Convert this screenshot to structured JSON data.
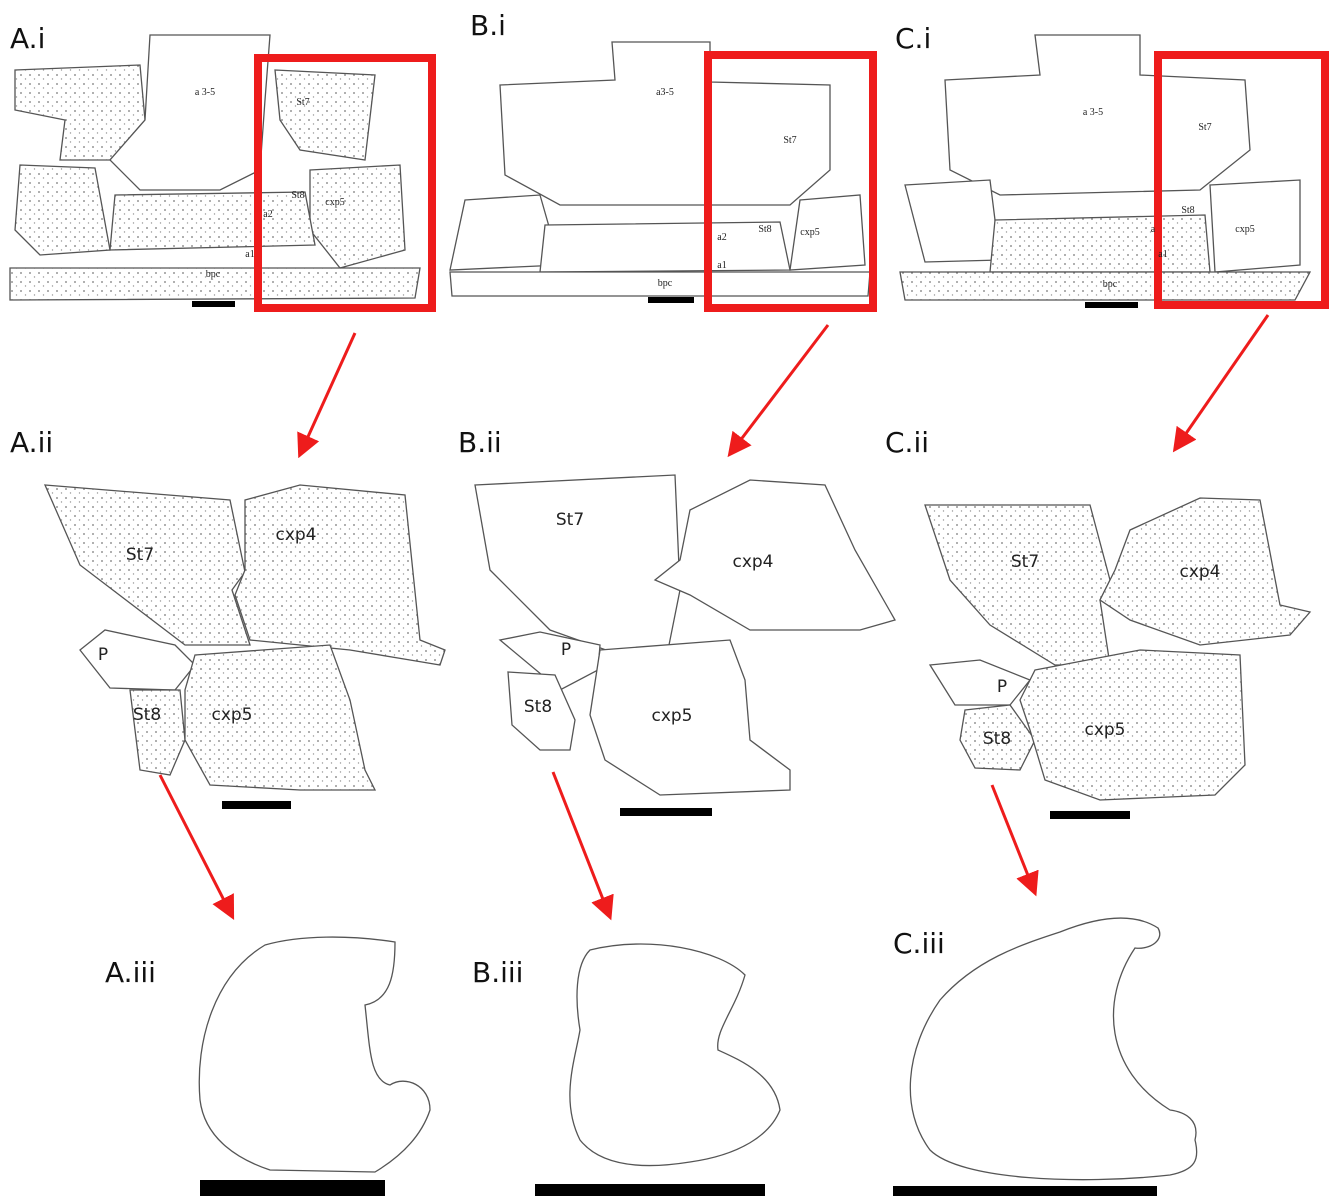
{
  "panels": [
    {
      "label": "A.i",
      "parts": [
        "a 3-5",
        "St7",
        "St8",
        "cxp5",
        "a2",
        "a1",
        "bpc"
      ]
    },
    {
      "label": "B.i",
      "parts": [
        "a3-5",
        "St7",
        "St8",
        "cxp5",
        "a2",
        "a1",
        "bpc"
      ]
    },
    {
      "label": "C.i",
      "parts": [
        "a 3-5",
        "St7",
        "St8",
        "cxp5",
        "a",
        "a1",
        "bpc"
      ]
    },
    {
      "label": "A.ii",
      "parts": [
        "St7",
        "cxp4",
        "P",
        "St8",
        "cxp5"
      ]
    },
    {
      "label": "B.ii",
      "parts": [
        "St7",
        "cxp4",
        "P",
        "St8",
        "cxp5"
      ]
    },
    {
      "label": "C.ii",
      "parts": [
        "St7",
        "cxp4",
        "P",
        "St8",
        "cxp5"
      ]
    },
    {
      "label": "A.iii"
    },
    {
      "label": "B.iii"
    },
    {
      "label": "C.iii"
    }
  ]
}
